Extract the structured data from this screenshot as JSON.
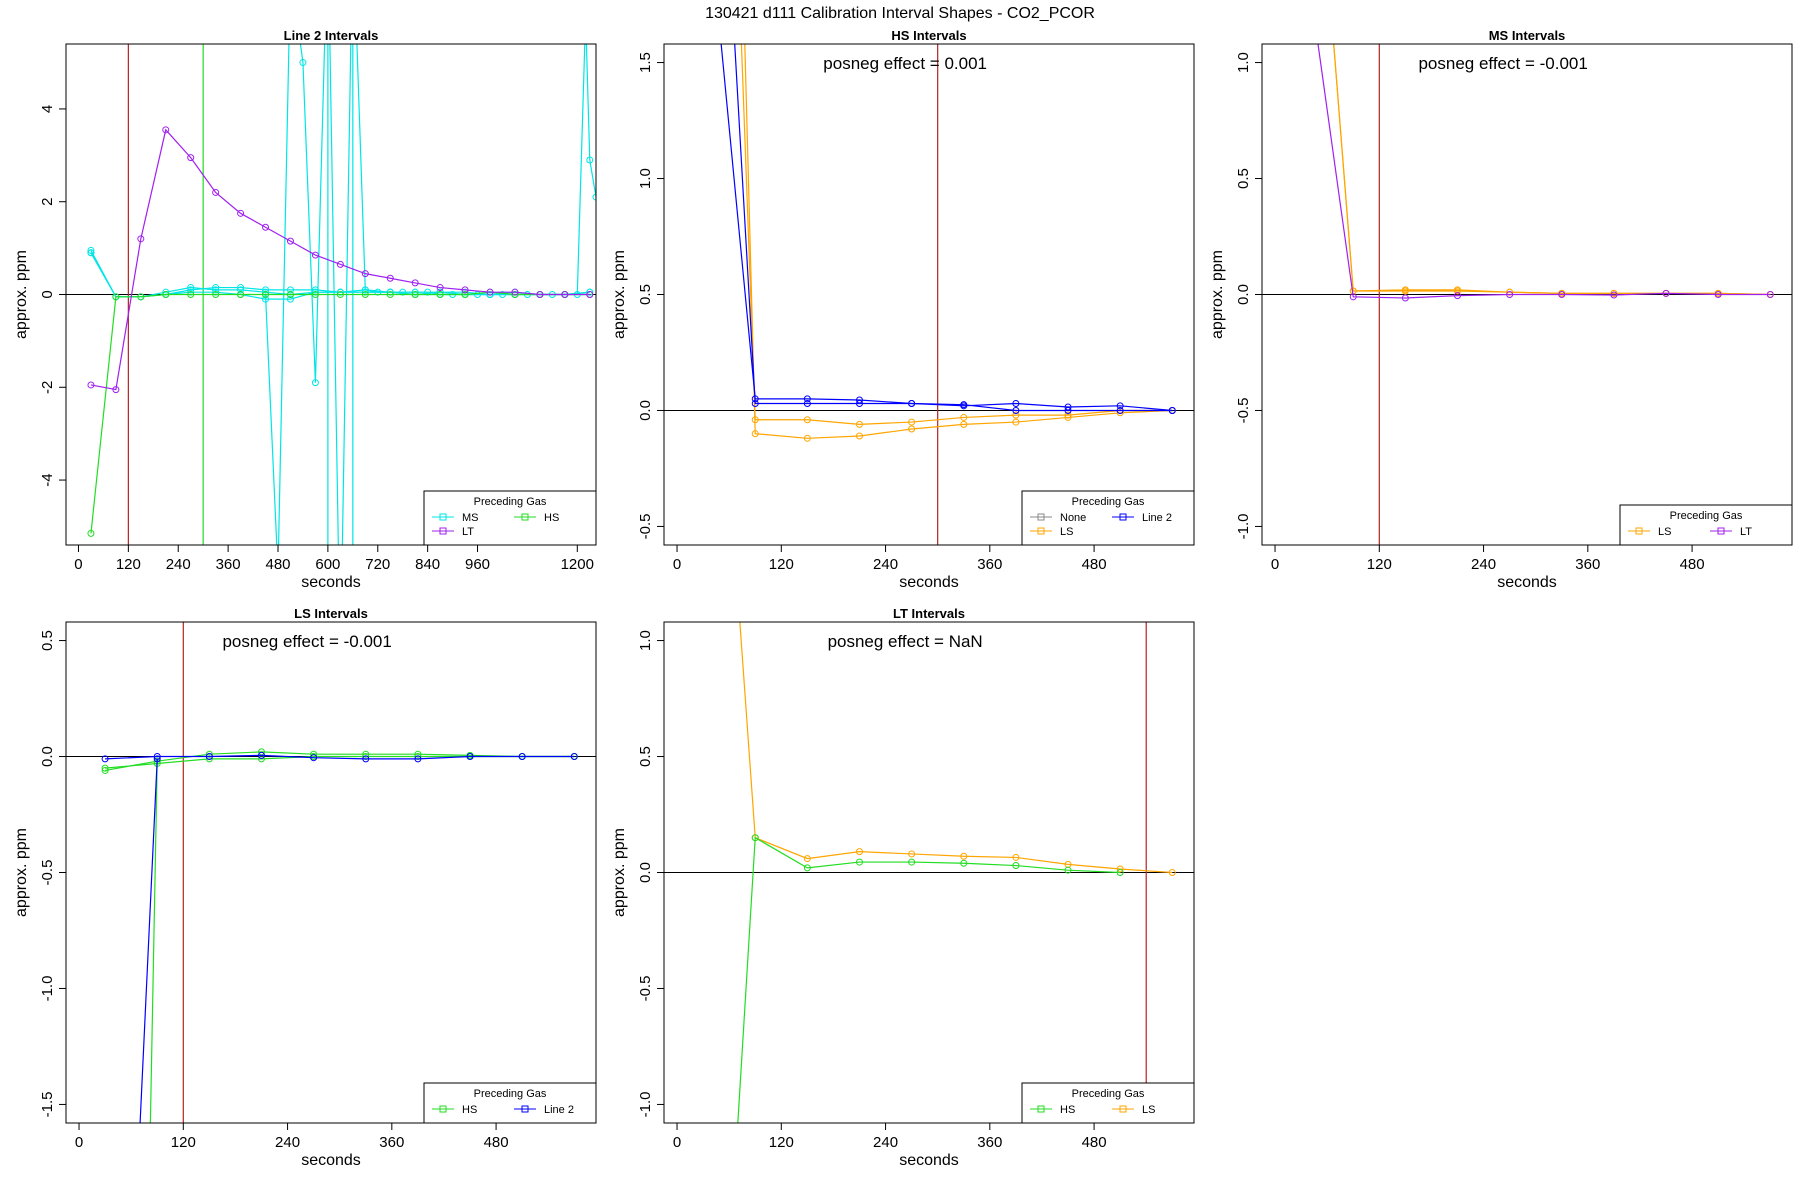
{
  "suptitle": "130421   d111   Calibration Interval Shapes - CO2_PCOR",
  "colors": {
    "None": "#888888",
    "LS": "#ffa500",
    "HS": "#22dd22",
    "MS": "#00e5e5",
    "LT": "#a020f0",
    "Line 2": "#0000ff",
    "ref_line": "#b22222",
    "zero_line": "#000000"
  },
  "chart_data": [
    {
      "type": "line",
      "title": "Line 2 Intervals",
      "xlabel": "seconds",
      "ylabel": "approx. ppm",
      "xlim": [
        -30,
        1245
      ],
      "ylim": [
        -5.4,
        5.4
      ],
      "xticks": [
        0,
        120,
        240,
        360,
        480,
        600,
        720,
        840,
        960,
        1200
      ],
      "yticks": [
        -4,
        -2,
        0,
        2,
        4
      ],
      "ref_vlines": [
        {
          "x": 120,
          "color": "#b22222"
        },
        {
          "x": 300,
          "color": "#22dd22"
        },
        {
          "x": 600,
          "color": "#00e5e5"
        },
        {
          "x": 660,
          "color": "#00e5e5"
        }
      ],
      "annotation": "",
      "legend": {
        "title": "Preceding Gas",
        "position": "bottom-right",
        "entries": [
          "MS",
          "HS",
          "LT"
        ],
        "columns": 2
      },
      "series": [
        {
          "name": "MS",
          "x": [
            30,
            90,
            150,
            210,
            270,
            330,
            390,
            450,
            510,
            570,
            630,
            690,
            750,
            810,
            870,
            930,
            990,
            1050,
            1110,
            1170,
            1230
          ],
          "y": [
            0.9,
            -0.05,
            -0.05,
            0.05,
            0.15,
            0.1,
            0.1,
            0.05,
            0.0,
            0.05,
            0.05,
            0.1,
            0.05,
            0.0,
            0.05,
            0.0,
            0.0,
            0.0,
            0.0,
            0.0,
            0.05
          ]
        },
        {
          "name": "MS",
          "x": [
            30,
            90,
            150,
            210,
            270,
            330,
            390,
            450,
            510,
            570,
            630,
            690,
            750,
            810,
            870,
            930,
            990,
            1050,
            1110,
            1170,
            1230
          ],
          "y": [
            0.9,
            -0.05,
            -0.05,
            0.0,
            0.1,
            0.15,
            0.15,
            0.1,
            0.1,
            0.1,
            0.05,
            0.05,
            0.05,
            0.05,
            0.05,
            0.05,
            0.0,
            0.05,
            0.0,
            0.0,
            0.05
          ]
        },
        {
          "name": "MS",
          "x": [
            30,
            90,
            150,
            210,
            270,
            330,
            390,
            450,
            510,
            570,
            630,
            690,
            750,
            810,
            870,
            930,
            990,
            1050,
            1110,
            1170,
            1230
          ],
          "y": [
            0.95,
            -0.05,
            -0.05,
            0.0,
            0.05,
            0.05,
            0.0,
            -0.1,
            -0.1,
            0.05,
            0.05,
            0.05,
            0.05,
            0.0,
            0.0,
            0.0,
            0.0,
            0.0,
            0.0,
            0.0,
            0.0
          ]
        },
        {
          "name": "MS",
          "x": [
            450,
            480,
            510,
            540,
            570,
            600,
            630,
            660,
            690,
            720,
            750,
            780,
            810,
            840,
            870,
            900,
            930,
            960,
            990,
            1020,
            1050,
            1080,
            1110,
            1140,
            1170,
            1200,
            1220,
            1230,
            1245
          ],
          "y": [
            0.0,
            -6,
            7,
            5,
            -1.9,
            8,
            -8,
            8,
            0.1,
            0.05,
            0.05,
            0.05,
            0.05,
            0.05,
            0.0,
            0.0,
            0.0,
            0.0,
            0.0,
            0.0,
            0.0,
            0.0,
            0.0,
            0.0,
            0.0,
            0.0,
            6,
            2.9,
            2.1
          ]
        },
        {
          "name": "HS",
          "x": [
            30,
            90,
            150,
            210,
            270,
            330,
            390,
            450,
            510,
            570,
            630,
            690,
            750,
            810,
            870,
            930,
            990,
            1050,
            1110,
            1170,
            1230
          ],
          "y": [
            -5.15,
            -0.05,
            -0.05,
            0.0,
            0.0,
            0.0,
            0.0,
            0.0,
            0.0,
            0.0,
            0.0,
            0.0,
            0.0,
            0.0,
            0.0,
            0.0,
            0.05,
            0.0,
            0.0,
            0.0,
            0.0
          ]
        },
        {
          "name": "LT",
          "x": [
            30,
            90,
            150,
            210,
            270,
            330,
            390,
            450,
            510,
            570,
            630,
            690,
            750,
            810,
            870,
            930,
            990,
            1050,
            1110,
            1170,
            1230
          ],
          "y": [
            -1.95,
            -2.05,
            1.2,
            3.55,
            2.95,
            2.2,
            1.75,
            1.45,
            1.15,
            0.85,
            0.65,
            0.45,
            0.35,
            0.25,
            0.15,
            0.1,
            0.05,
            0.05,
            0.0,
            0.0,
            0.0
          ]
        }
      ]
    },
    {
      "type": "line",
      "title": "HS Intervals",
      "xlabel": "seconds",
      "ylabel": "approx. ppm",
      "xlim": [
        -15,
        595
      ],
      "ylim": [
        -0.58,
        1.58
      ],
      "xticks": [
        0,
        120,
        240,
        360,
        480
      ],
      "yticks": [
        -0.5,
        0.0,
        0.5,
        1.0,
        1.5
      ],
      "ref_vlines": [
        {
          "x": 300,
          "color": "#b22222"
        }
      ],
      "annotation": "posneg effect = 0.001",
      "legend": {
        "title": "Preceding Gas",
        "position": "bottom-right",
        "entries": [
          "None",
          "Line 2",
          "LS"
        ],
        "columns": 2
      },
      "series": [
        {
          "name": "LS",
          "x": [
            70,
            90,
            150,
            210,
            270,
            330,
            390,
            450,
            510,
            570
          ],
          "y": [
            2.0,
            -0.04,
            -0.04,
            -0.06,
            -0.05,
            -0.03,
            -0.02,
            -0.02,
            0.0,
            0.0
          ]
        },
        {
          "name": "LS",
          "x": [
            75,
            90,
            150,
            210,
            270,
            330,
            390,
            450,
            510,
            570
          ],
          "y": [
            2.0,
            -0.1,
            -0.12,
            -0.11,
            -0.08,
            -0.06,
            -0.05,
            -0.03,
            -0.01,
            0.0
          ]
        },
        {
          "name": "Line 2",
          "x": [
            40,
            90,
            150,
            210,
            270,
            330,
            390,
            450,
            510,
            570
          ],
          "y": [
            2.0,
            0.05,
            0.05,
            0.045,
            0.03,
            0.02,
            0.03,
            0.015,
            0.02,
            0.0
          ]
        },
        {
          "name": "Line 2",
          "x": [
            60,
            90,
            150,
            210,
            270,
            330,
            390,
            450,
            510,
            570
          ],
          "y": [
            2.0,
            0.03,
            0.03,
            0.03,
            0.03,
            0.025,
            0.0,
            0.0,
            0.0,
            0.0
          ]
        }
      ]
    },
    {
      "type": "line",
      "title": "MS Intervals",
      "xlabel": "seconds",
      "ylabel": "approx. ppm",
      "xlim": [
        -15,
        595
      ],
      "ylim": [
        -1.08,
        1.08
      ],
      "xticks": [
        0,
        120,
        240,
        360,
        480
      ],
      "yticks": [
        -1.0,
        -0.5,
        0.0,
        0.5,
        1.0
      ],
      "ref_vlines": [
        {
          "x": 120,
          "color": "#b22222"
        }
      ],
      "annotation": "posneg effect = -0.001",
      "legend": {
        "title": "Preceding Gas",
        "position": "bottom-right",
        "entries": [
          "LS",
          "LT"
        ],
        "columns": 2
      },
      "series": [
        {
          "name": "LS",
          "x": [
            65,
            90,
            150,
            210,
            270,
            330,
            390,
            450,
            510,
            570
          ],
          "y": [
            1.2,
            0.015,
            0.02,
            0.02,
            0.01,
            0.005,
            0.005,
            0.005,
            0.005,
            0.0
          ]
        },
        {
          "name": "LS",
          "x": [
            65,
            90,
            150,
            210,
            270,
            330,
            390,
            450,
            510,
            570
          ],
          "y": [
            1.2,
            0.015,
            0.015,
            0.015,
            0.01,
            0.005,
            0.005,
            0.005,
            0.005,
            0.0
          ]
        },
        {
          "name": "LT",
          "x": [
            45,
            90,
            150,
            210,
            270,
            330,
            390,
            450,
            510,
            570
          ],
          "y": [
            1.2,
            -0.01,
            -0.015,
            -0.005,
            0.0,
            0.0,
            -0.002,
            0.005,
            0.0,
            0.0
          ]
        }
      ]
    },
    {
      "type": "line",
      "title": "LS Intervals",
      "xlabel": "seconds",
      "ylabel": "approx. ppm",
      "xlim": [
        -15,
        595
      ],
      "ylim": [
        -1.58,
        0.58
      ],
      "xticks": [
        0,
        120,
        240,
        360,
        480
      ],
      "yticks": [
        -1.5,
        -1.0,
        -0.5,
        0.0,
        0.5
      ],
      "ref_vlines": [
        {
          "x": 120,
          "color": "#b22222"
        }
      ],
      "annotation": "posneg effect = -0.001",
      "legend": {
        "title": "Preceding Gas",
        "position": "bottom-right",
        "entries": [
          "HS",
          "Line 2"
        ],
        "columns": 2
      },
      "series": [
        {
          "name": "HS",
          "x": [
            30,
            90,
            150,
            210,
            270,
            330,
            390,
            450,
            510,
            570
          ],
          "y": [
            -0.06,
            -0.02,
            0.01,
            0.02,
            0.01,
            0.01,
            0.01,
            0.005,
            0.0,
            0.0
          ]
        },
        {
          "name": "HS",
          "x": [
            30,
            90,
            150,
            210,
            270,
            330,
            390,
            450,
            510,
            570
          ],
          "y": [
            -0.05,
            -0.03,
            -0.01,
            -0.01,
            0.0,
            0.0,
            0.0,
            0.0,
            0.0,
            0.0
          ]
        },
        {
          "name": "HS",
          "x": [
            80,
            90
          ],
          "y": [
            -2.0,
            -0.02
          ]
        },
        {
          "name": "Line 2",
          "x": [
            30,
            90,
            150,
            210,
            270,
            330,
            390,
            450,
            510,
            570
          ],
          "y": [
            -0.01,
            0.0,
            0.0,
            0.005,
            -0.005,
            -0.01,
            -0.01,
            0.0,
            0.0,
            0.0
          ]
        },
        {
          "name": "Line 2",
          "x": [
            65,
            90
          ],
          "y": [
            -2.0,
            -0.01
          ]
        }
      ]
    },
    {
      "type": "line",
      "title": "LT Intervals",
      "xlabel": "seconds",
      "ylabel": "approx. ppm",
      "xlim": [
        -15,
        595
      ],
      "ylim": [
        -1.08,
        1.08
      ],
      "xticks": [
        0,
        120,
        240,
        360,
        480
      ],
      "yticks": [
        -1.0,
        -0.5,
        0.0,
        0.5,
        1.0
      ],
      "ref_vlines": [
        {
          "x": 540,
          "color": "#b22222"
        }
      ],
      "annotation": "posneg effect = NaN",
      "legend": {
        "title": "Preceding Gas",
        "position": "bottom-right",
        "entries": [
          "HS",
          "LS"
        ],
        "columns": 2
      },
      "series": [
        {
          "name": "LS",
          "x": [
            70,
            90,
            150,
            210,
            270,
            330,
            390,
            450,
            510,
            570
          ],
          "y": [
            1.2,
            0.15,
            0.06,
            0.09,
            0.08,
            0.07,
            0.065,
            0.035,
            0.015,
            0.0
          ]
        },
        {
          "name": "HS",
          "x": [
            68,
            90,
            150,
            210,
            270,
            330,
            390,
            450,
            510
          ],
          "y": [
            -1.2,
            0.15,
            0.02,
            0.045,
            0.045,
            0.04,
            0.03,
            0.01,
            0.0
          ]
        }
      ]
    }
  ]
}
